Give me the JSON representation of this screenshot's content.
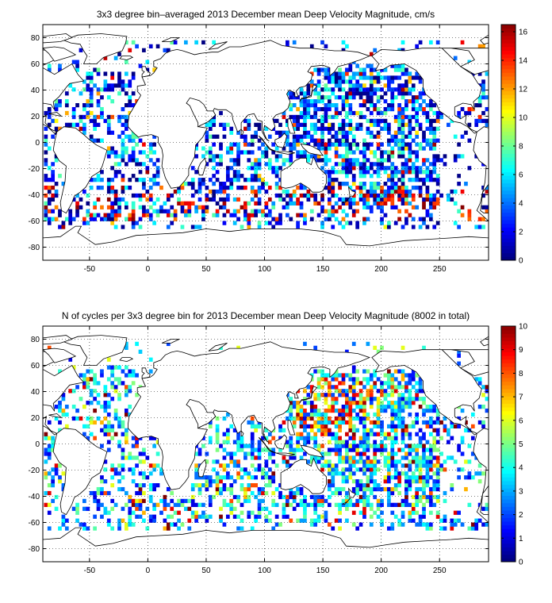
{
  "chart_data": [
    {
      "type": "heatmap",
      "title": "3x3 degree bin–averaged 2013 December mean Deep Velocity Magnitude, cm/s",
      "xlabel": "",
      "ylabel": "",
      "xlim": [
        -90,
        292
      ],
      "ylim": [
        -90,
        90
      ],
      "x_ticks": [
        -50,
        0,
        50,
        100,
        150,
        200,
        250
      ],
      "y_ticks": [
        80,
        60,
        40,
        20,
        0,
        -20,
        -40,
        -60,
        -80
      ],
      "colorbar": {
        "min": 0,
        "max": 16.5,
        "ticks": [
          0,
          2,
          4,
          6,
          8,
          10,
          12,
          14,
          16
        ]
      },
      "colormap": "jet",
      "grid": true,
      "bin_size_deg": 3,
      "seed": 7,
      "value_distribution": "mostly low (blue/cyan), high (red/orange) concentrated in Southern Ocean 35S-60S"
    },
    {
      "type": "heatmap",
      "title": "N of cycles per 3x3 degree bin for 2013 December mean Deep Velocity Magnitude (8002 in total)",
      "xlabel": "",
      "ylabel": "",
      "xlim": [
        -90,
        292
      ],
      "ylim": [
        -90,
        90
      ],
      "x_ticks": [
        -50,
        0,
        50,
        100,
        150,
        200,
        250
      ],
      "y_ticks": [
        80,
        60,
        40,
        20,
        0,
        -20,
        -40,
        -60,
        -80
      ],
      "colorbar": {
        "min": 0,
        "max": 10,
        "ticks": [
          0,
          1,
          2,
          3,
          4,
          5,
          6,
          7,
          8,
          9,
          10
        ]
      },
      "colormap": "jet",
      "grid": true,
      "bin_size_deg": 3,
      "seed": 19,
      "value_distribution": "mixed 1-10, higher counts (red) in NW Pacific 10N-45N"
    }
  ]
}
